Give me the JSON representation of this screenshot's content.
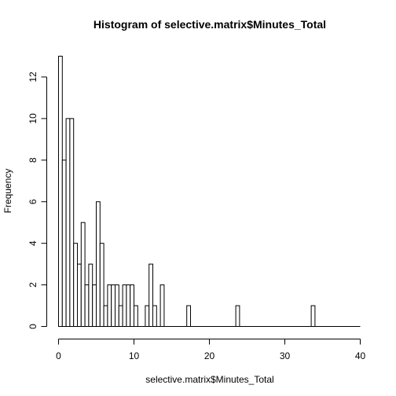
{
  "chart_data": {
    "type": "bar",
    "title": "Histogram of selective.matrix$Minutes_Total",
    "xlabel": "selective.matrix$Minutes_Total",
    "ylabel": "Frequency",
    "xlim": [
      0,
      40
    ],
    "ylim": [
      0,
      13
    ],
    "bin_width": 0.5,
    "x_ticks": [
      0,
      10,
      20,
      30,
      40
    ],
    "y_ticks": [
      0,
      2,
      4,
      6,
      8,
      10,
      12
    ],
    "bins": [
      {
        "x0": 0.0,
        "x1": 0.5,
        "count": 13
      },
      {
        "x0": 0.5,
        "x1": 1.0,
        "count": 8
      },
      {
        "x0": 1.0,
        "x1": 1.5,
        "count": 10
      },
      {
        "x0": 1.5,
        "x1": 2.0,
        "count": 10
      },
      {
        "x0": 2.0,
        "x1": 2.5,
        "count": 4
      },
      {
        "x0": 2.5,
        "x1": 3.0,
        "count": 3
      },
      {
        "x0": 3.0,
        "x1": 3.5,
        "count": 5
      },
      {
        "x0": 3.5,
        "x1": 4.0,
        "count": 2
      },
      {
        "x0": 4.0,
        "x1": 4.5,
        "count": 3
      },
      {
        "x0": 4.5,
        "x1": 5.0,
        "count": 2
      },
      {
        "x0": 5.0,
        "x1": 5.5,
        "count": 6
      },
      {
        "x0": 5.5,
        "x1": 6.0,
        "count": 4
      },
      {
        "x0": 6.0,
        "x1": 6.5,
        "count": 1
      },
      {
        "x0": 6.5,
        "x1": 7.0,
        "count": 2
      },
      {
        "x0": 7.0,
        "x1": 7.5,
        "count": 2
      },
      {
        "x0": 7.5,
        "x1": 8.0,
        "count": 2
      },
      {
        "x0": 8.0,
        "x1": 8.5,
        "count": 1
      },
      {
        "x0": 8.5,
        "x1": 9.0,
        "count": 2
      },
      {
        "x0": 9.0,
        "x1": 9.5,
        "count": 2
      },
      {
        "x0": 9.5,
        "x1": 10.0,
        "count": 2
      },
      {
        "x0": 10.0,
        "x1": 10.5,
        "count": 1
      },
      {
        "x0": 11.5,
        "x1": 12.0,
        "count": 1
      },
      {
        "x0": 12.0,
        "x1": 12.5,
        "count": 3
      },
      {
        "x0": 12.5,
        "x1": 13.0,
        "count": 1
      },
      {
        "x0": 13.5,
        "x1": 14.0,
        "count": 2
      },
      {
        "x0": 17.0,
        "x1": 17.5,
        "count": 1
      },
      {
        "x0": 23.5,
        "x1": 24.0,
        "count": 1
      },
      {
        "x0": 33.5,
        "x1": 34.0,
        "count": 1
      }
    ]
  }
}
